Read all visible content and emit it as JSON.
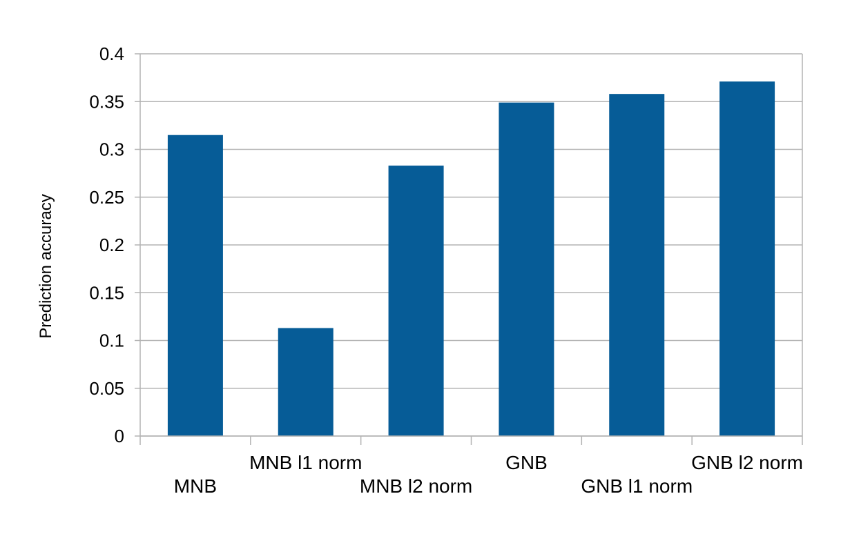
{
  "chart_data": {
    "type": "bar",
    "title": "",
    "xlabel": "",
    "ylabel": "Prediction  accuracy",
    "categories": [
      "MNB",
      "MNB l1 norm",
      "MNB l2 norm",
      "GNB",
      "GNB l1 norm",
      "GNB l2 norm"
    ],
    "values": [
      0.315,
      0.113,
      0.283,
      0.349,
      0.358,
      0.371
    ],
    "ylim": [
      0,
      0.4
    ],
    "yticks": [
      "0",
      "0.05",
      "0.1",
      "0.15",
      "0.2",
      "0.25",
      "0.3",
      "0.35",
      "0.4"
    ],
    "grid": true,
    "legend": "none",
    "colors": {
      "bar": "#065c97",
      "grid": "#b3b3b3",
      "axis": "#b3b3b3"
    }
  }
}
